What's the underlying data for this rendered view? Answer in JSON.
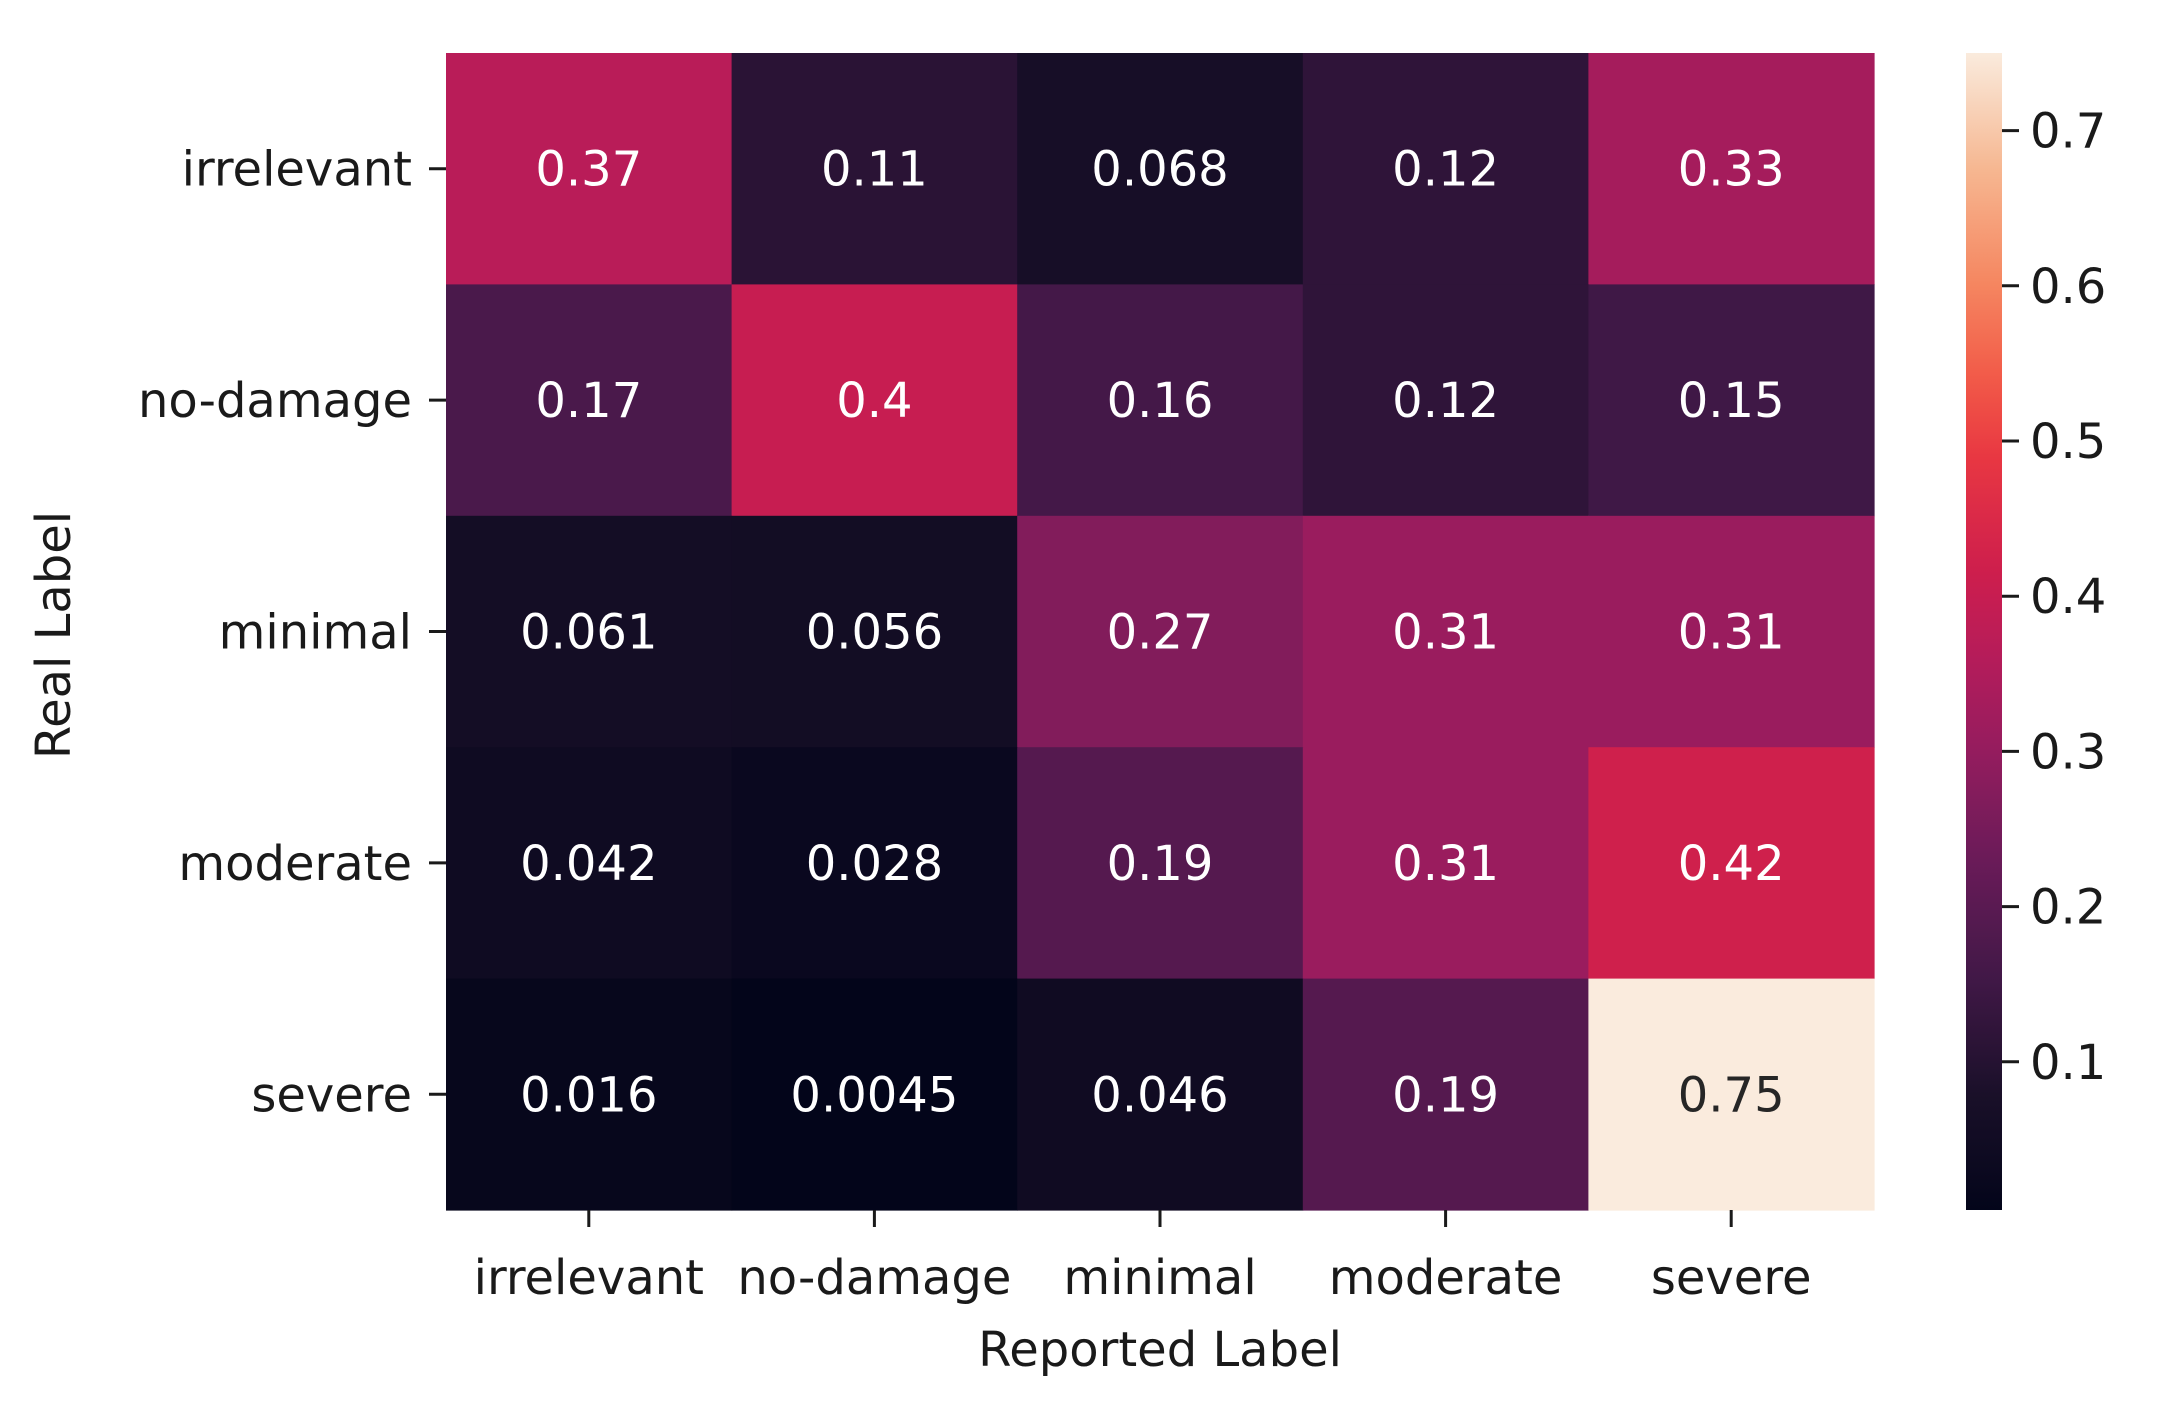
{
  "chart_data": {
    "type": "heatmap",
    "title": "",
    "xlabel": "Reported Label",
    "ylabel": "Real Label",
    "x_categories": [
      "irrelevant",
      "no-damage",
      "minimal",
      "moderate",
      "severe"
    ],
    "y_categories": [
      "irrelevant",
      "no-damage",
      "minimal",
      "moderate",
      "severe"
    ],
    "values": [
      [
        0.37,
        0.11,
        0.068,
        0.12,
        0.33
      ],
      [
        0.17,
        0.4,
        0.16,
        0.12,
        0.15
      ],
      [
        0.061,
        0.056,
        0.27,
        0.31,
        0.31
      ],
      [
        0.042,
        0.028,
        0.19,
        0.31,
        0.42
      ],
      [
        0.016,
        0.0045,
        0.046,
        0.19,
        0.75
      ]
    ],
    "value_labels": [
      [
        "0.37",
        "0.11",
        "0.068",
        "0.12",
        "0.33"
      ],
      [
        "0.17",
        "0.4",
        "0.16",
        "0.12",
        "0.15"
      ],
      [
        "0.061",
        "0.056",
        "0.27",
        "0.31",
        "0.31"
      ],
      [
        "0.042",
        "0.028",
        "0.19",
        "0.31",
        "0.42"
      ],
      [
        "0.016",
        "0.0045",
        "0.046",
        "0.19",
        "0.75"
      ]
    ],
    "colormap": "rocket",
    "colorbar": {
      "vmin": 0.0045,
      "vmax": 0.75,
      "ticks": [
        0.1,
        0.2,
        0.3,
        0.4,
        0.5,
        0.6,
        0.7
      ],
      "tick_labels": [
        "0.1",
        "0.2",
        "0.3",
        "0.4",
        "0.5",
        "0.6",
        "0.7"
      ],
      "position": "right"
    },
    "grid": false
  }
}
